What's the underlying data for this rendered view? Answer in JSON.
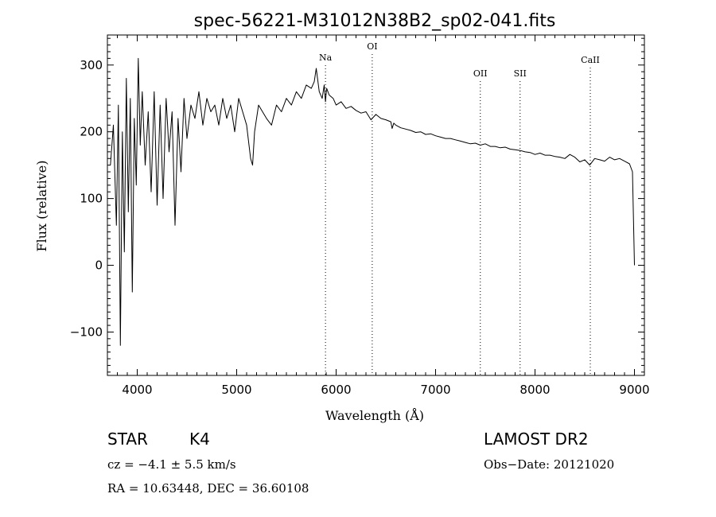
{
  "chart_data": {
    "type": "line",
    "title": "spec-56221-M31012N38B2_sp02-041.fits",
    "xlabel": "Wavelength (Å)",
    "ylabel": "Flux (relative)",
    "xlim": [
      3700,
      9100
    ],
    "ylim": [
      -165,
      345
    ],
    "x_ticks": [
      4000,
      5000,
      6000,
      7000,
      8000,
      9000
    ],
    "y_ticks": [
      -100,
      0,
      100,
      200,
      300
    ],
    "x_tick_labels": [
      "4000",
      "5000",
      "6000",
      "7000",
      "8000",
      "9000"
    ],
    "y_tick_labels": [
      "−100",
      "0",
      "100",
      "200",
      "300"
    ],
    "grid": false,
    "line_markers": [
      {
        "label": "Na",
        "x": 5893
      },
      {
        "label": "OI",
        "x": 6363
      },
      {
        "label": "OII",
        "x": 7450
      },
      {
        "label": "SII",
        "x": 7850
      },
      {
        "label": "CaII",
        "x": 8556
      }
    ],
    "series": [
      {
        "x": [
          3730,
          3760,
          3790,
          3810,
          3830,
          3850,
          3870,
          3890,
          3910,
          3930,
          3950,
          3970,
          3990,
          4010,
          4030,
          4050,
          4080,
          4110,
          4140,
          4170,
          4200,
          4230,
          4260,
          4290,
          4320,
          4350,
          4380,
          4410,
          4440,
          4470,
          4500,
          4540,
          4580,
          4620,
          4660,
          4700,
          4740,
          4780,
          4820,
          4860,
          4900,
          4940,
          4980,
          5020,
          5060,
          5100,
          5140,
          5160,
          5180,
          5220,
          5260,
          5300,
          5350,
          5400,
          5450,
          5500,
          5550,
          5600,
          5650,
          5700,
          5750,
          5780,
          5800,
          5830,
          5860,
          5880,
          5893,
          5905,
          5930,
          5970,
          6000,
          6050,
          6100,
          6150,
          6200,
          6250,
          6300,
          6350,
          6400,
          6450,
          6500,
          6550,
          6563,
          6580,
          6600,
          6650,
          6700,
          6750,
          6800,
          6850,
          6900,
          6950,
          7000,
          7050,
          7100,
          7150,
          7200,
          7250,
          7300,
          7350,
          7400,
          7450,
          7500,
          7550,
          7600,
          7650,
          7700,
          7750,
          7800,
          7850,
          7900,
          7950,
          8000,
          8050,
          8100,
          8150,
          8200,
          8250,
          8300,
          8350,
          8400,
          8450,
          8500,
          8550,
          8600,
          8650,
          8700,
          8750,
          8800,
          8850,
          8900,
          8950,
          8980,
          9000
        ],
        "y": [
          150,
          210,
          60,
          240,
          -120,
          200,
          20,
          280,
          80,
          250,
          -40,
          220,
          120,
          310,
          180,
          260,
          150,
          230,
          110,
          260,
          90,
          240,
          100,
          250,
          170,
          230,
          60,
          220,
          140,
          250,
          190,
          240,
          220,
          260,
          210,
          250,
          230,
          240,
          210,
          250,
          220,
          240,
          200,
          250,
          230,
          210,
          160,
          150,
          200,
          240,
          230,
          220,
          210,
          240,
          230,
          250,
          240,
          260,
          250,
          270,
          265,
          275,
          295,
          260,
          250,
          270,
          245,
          265,
          255,
          250,
          240,
          245,
          235,
          238,
          232,
          228,
          230,
          218,
          226,
          220,
          218,
          215,
          205,
          213,
          210,
          206,
          204,
          202,
          199,
          200,
          196,
          197,
          194,
          192,
          190,
          190,
          188,
          186,
          184,
          182,
          183,
          180,
          182,
          178,
          178,
          176,
          177,
          174,
          173,
          172,
          170,
          169,
          166,
          168,
          165,
          165,
          163,
          162,
          160,
          166,
          162,
          155,
          158,
          150,
          160,
          158,
          156,
          162,
          158,
          160,
          156,
          152,
          140,
          0
        ]
      }
    ],
    "info": {
      "class_label": "STAR",
      "subclass": "K4",
      "survey": "LAMOST DR2",
      "cz_line": "cz = −4.1 ± 5.5 km/s",
      "obs_date": "Obs−Date: 20121020",
      "coords": "RA =  10.63448, DEC =  36.60108"
    }
  }
}
